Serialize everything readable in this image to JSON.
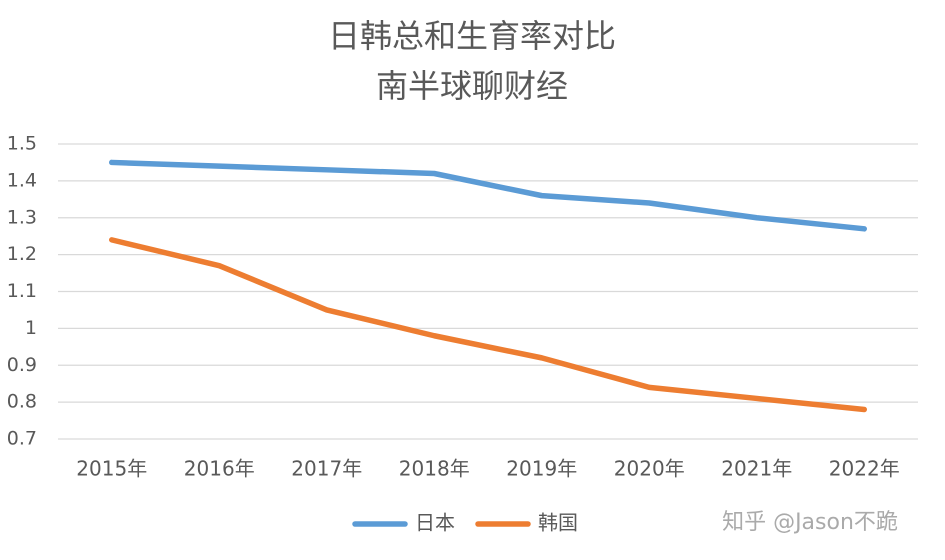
{
  "chart_data": {
    "type": "line",
    "title": "日韩总和生育率对比",
    "subtitle": "南半球聊财经",
    "categories": [
      "2015年",
      "2016年",
      "2017年",
      "2018年",
      "2019年",
      "2020年",
      "2021年",
      "2022年"
    ],
    "series": [
      {
        "name": "日本",
        "color": "#5b9bd5",
        "values": [
          1.45,
          1.44,
          1.43,
          1.42,
          1.36,
          1.34,
          1.3,
          1.27
        ]
      },
      {
        "name": "韩国",
        "color": "#ed7d31",
        "values": [
          1.24,
          1.17,
          1.05,
          0.98,
          0.92,
          0.84,
          0.81,
          0.78
        ]
      }
    ],
    "ylim": [
      0.7,
      1.5
    ],
    "yticks": [
      0.7,
      0.8,
      0.9,
      1,
      1.1,
      1.2,
      1.3,
      1.4,
      1.5
    ],
    "grid": true,
    "legend": "bottom",
    "watermark": "知乎 @Jason不跪"
  }
}
